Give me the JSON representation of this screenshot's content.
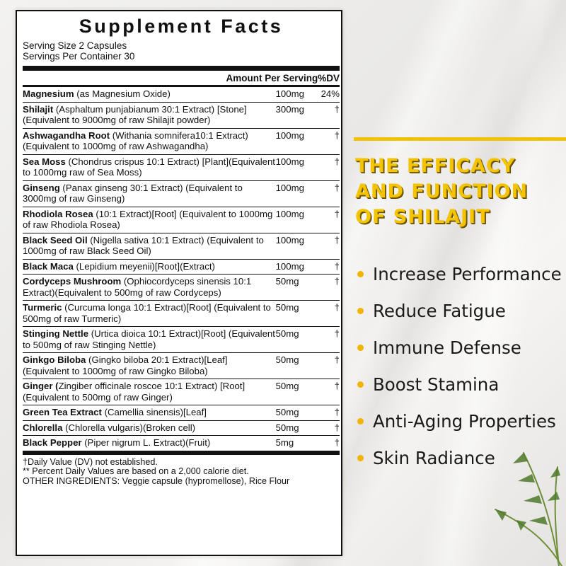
{
  "facts": {
    "title": "Supplement Facts",
    "serving_size": "Serving Size 2 Capsules",
    "servings_per_container": "Servings Per Container 30",
    "amount_header": "Amount Per Serving%DV",
    "ingredients": [
      {
        "name": "Magnesium",
        "desc": " (as Magnesium Oxide)",
        "amount": "100mg",
        "dv": "24%"
      },
      {
        "name": "Shilajit",
        "desc": " (Asphaltum punjabianum 30:1 Extract) [Stone](Equivalent to 9000mg of raw Shilajit powder)",
        "amount": "300mg",
        "dv": "†"
      },
      {
        "name": "Ashwagandha Root",
        "desc": " (Withania somnifera10:1 Extract)(Equivalent to 1000mg of raw Ashwagandha)",
        "amount": "100mg",
        "dv": "†"
      },
      {
        "name": "Sea Moss",
        "desc": " (Chondrus crispus 10:1 Extract) [Plant](Equivalent to 1000mg raw of Sea Moss)",
        "amount": "100mg",
        "dv": "†"
      },
      {
        "name": "Ginseng",
        "desc": " (Panax ginseng 30:1 Extract) (Equivalent to 3000mg of raw Ginseng)",
        "amount": "100mg",
        "dv": "†"
      },
      {
        "name": "Rhodiola Rosea",
        "desc": " (10:1 Extract)[Root] (Equivalent to 1000mg of raw Rhodiola Rosea)",
        "amount": "100mg",
        "dv": "†"
      },
      {
        "name": "Black Seed Oil",
        "desc": " (Nigella sativa 10:1 Extract) (Equivalent to 1000mg of raw Black Seed Oil)",
        "amount": "100mg",
        "dv": "†"
      },
      {
        "name": "Black Maca",
        "desc": " (Lepidium meyenii)[Root](Extract)",
        "amount": "100mg",
        "dv": "†"
      },
      {
        "name": "Cordyceps Mushroom",
        "desc": " (Ophiocordyceps sinensis 10:1 Extract)(Equivalent to 500mg of raw Cordyceps)",
        "amount": "50mg",
        "dv": "†"
      },
      {
        "name": "Turmeric",
        "desc": " (Curcuma longa 10:1 Extract)[Root] (Equivalent to 500mg of raw Turmeric)",
        "amount": "50mg",
        "dv": "†"
      },
      {
        "name": "Stinging Nettle",
        "desc": " (Urtica dioica 10:1 Extract)[Root] (Equivalent to 500mg of raw Stinging Nettle)",
        "amount": "50mg",
        "dv": "†"
      },
      {
        "name": "Ginkgo Biloba",
        "desc": " (Gingko biloba 20:1 Extract)[Leaf] (Equivalent to 1000mg of raw Gingko Biloba)",
        "amount": "50mg",
        "dv": "†"
      },
      {
        "name": "Ginger (",
        "desc": "Zingiber officinale roscoe 10:1 Extract) [Root](Equivalent to 500mg of raw Ginger)",
        "amount": "50mg",
        "dv": "†"
      },
      {
        "name": "Green Tea Extract",
        "desc": " (Camellia sinensis)[Leaf]",
        "amount": "50mg",
        "dv": "†"
      },
      {
        "name": "Chlorella",
        "desc": " (Chlorella vulgaris)(Broken cell)",
        "amount": "50mg",
        "dv": "†"
      },
      {
        "name": "Black Pepper",
        "desc": " (Piper nigrum L. Extract)(Fruit)",
        "amount": "5mg",
        "dv": "†"
      }
    ],
    "footnote_dv": "†Daily Value (DV) not established.",
    "footnote_percent": "** Percent Daily Values are based on a 2,000 calorie diet.",
    "other_ingredients": "OTHER INGREDIENTS: Veggie capsule (hypromellose), Rice Flour"
  },
  "promo": {
    "headline_line1": "THE EFFICACY",
    "headline_line2": "AND FUNCTION",
    "headline_line3": "OF SHILAJIT",
    "benefits": [
      "Increase Performance",
      "Reduce Fatigue",
      "Immune Defense",
      "Boost Stamina",
      "Anti-Aging Properties",
      "Skin Radiance"
    ],
    "accent_color": "#f5c400",
    "bullet_icon": "yellow-dot"
  }
}
